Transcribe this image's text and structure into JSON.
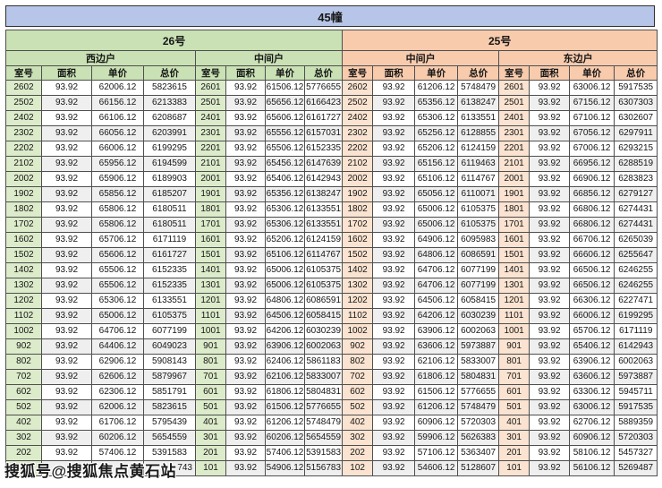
{
  "title": "45幢",
  "watermark": {
    "text": "搜狐号@搜狐焦点黄石站"
  },
  "colors": {
    "title_band": "#b7c6e8",
    "block_26_header": "#c9e1b4",
    "block_25_header": "#f8cbad",
    "room_cell_26": "#dcebca",
    "room_cell_25": "#fae3d0",
    "row_stripe": "#efefef",
    "grid_border": "#4f4f4f"
  },
  "chart_data": {
    "type": "table",
    "title": "45幢",
    "building_groups": [
      {
        "label": "26号",
        "unit_groups": [
          "西边户",
          "中间户"
        ]
      },
      {
        "label": "25号",
        "unit_groups": [
          "中间户",
          "东边户"
        ]
      }
    ],
    "column_headers": [
      "室号",
      "面积",
      "单价",
      "总价"
    ],
    "rows": [
      [
        "2602",
        "93.92",
        "62006.12",
        "5823615",
        "2601",
        "93.92",
        "61506.12",
        "5776655",
        "2602",
        "93.92",
        "61206.12",
        "5748479",
        "2601",
        "93.92",
        "63006.12",
        "5917535"
      ],
      [
        "2502",
        "93.92",
        "66156.12",
        "6213383",
        "2501",
        "93.92",
        "65656.12",
        "6166423",
        "2502",
        "93.92",
        "65356.12",
        "6138247",
        "2501",
        "93.92",
        "67156.12",
        "6307303"
      ],
      [
        "2402",
        "93.92",
        "66106.12",
        "6208687",
        "2401",
        "93.92",
        "65606.12",
        "6161727",
        "2402",
        "93.92",
        "65306.12",
        "6133551",
        "2401",
        "93.92",
        "67106.12",
        "6302607"
      ],
      [
        "2302",
        "93.92",
        "66056.12",
        "6203991",
        "2301",
        "93.92",
        "65556.12",
        "6157031",
        "2302",
        "93.92",
        "65256.12",
        "6128855",
        "2301",
        "93.92",
        "67056.12",
        "6297911"
      ],
      [
        "2202",
        "93.92",
        "66006.12",
        "6199295",
        "2201",
        "93.92",
        "65506.12",
        "6152335",
        "2202",
        "93.92",
        "65206.12",
        "6124159",
        "2201",
        "93.92",
        "67006.12",
        "6293215"
      ],
      [
        "2102",
        "93.92",
        "65956.12",
        "6194599",
        "2101",
        "93.92",
        "65456.12",
        "6147639",
        "2102",
        "93.92",
        "65156.12",
        "6119463",
        "2101",
        "93.92",
        "66956.12",
        "6288519"
      ],
      [
        "2002",
        "93.92",
        "65906.12",
        "6189903",
        "2001",
        "93.92",
        "65406.12",
        "6142943",
        "2002",
        "93.92",
        "65106.12",
        "6114767",
        "2001",
        "93.92",
        "66906.12",
        "6283823"
      ],
      [
        "1902",
        "93.92",
        "65856.12",
        "6185207",
        "1901",
        "93.92",
        "65356.12",
        "6138247",
        "1902",
        "93.92",
        "65056.12",
        "6110071",
        "1901",
        "93.92",
        "66856.12",
        "6279127"
      ],
      [
        "1802",
        "93.92",
        "65806.12",
        "6180511",
        "1801",
        "93.92",
        "65306.12",
        "6133551",
        "1802",
        "93.92",
        "65006.12",
        "6105375",
        "1801",
        "93.92",
        "66806.12",
        "6274431"
      ],
      [
        "1702",
        "93.92",
        "65806.12",
        "6180511",
        "1701",
        "93.92",
        "65306.12",
        "6133551",
        "1702",
        "93.92",
        "65006.12",
        "6105375",
        "1701",
        "93.92",
        "66806.12",
        "6274431"
      ],
      [
        "1602",
        "93.92",
        "65706.12",
        "6171119",
        "1601",
        "93.92",
        "65206.12",
        "6124159",
        "1602",
        "93.92",
        "64906.12",
        "6095983",
        "1601",
        "93.92",
        "66706.12",
        "6265039"
      ],
      [
        "1502",
        "93.92",
        "65606.12",
        "6161727",
        "1501",
        "93.92",
        "65106.12",
        "6114767",
        "1502",
        "93.92",
        "64806.12",
        "6086591",
        "1501",
        "93.92",
        "66606.12",
        "6255647"
      ],
      [
        "1402",
        "93.92",
        "65506.12",
        "6152335",
        "1401",
        "93.92",
        "65006.12",
        "6105375",
        "1402",
        "93.92",
        "64706.12",
        "6077199",
        "1401",
        "93.92",
        "66506.12",
        "6246255"
      ],
      [
        "1302",
        "93.92",
        "65506.12",
        "6152335",
        "1301",
        "93.92",
        "65006.12",
        "6105375",
        "1302",
        "93.92",
        "64706.12",
        "6077199",
        "1301",
        "93.92",
        "66506.12",
        "6246255"
      ],
      [
        "1202",
        "93.92",
        "65306.12",
        "6133551",
        "1201",
        "93.92",
        "64806.12",
        "6086591",
        "1202",
        "93.92",
        "64506.12",
        "6058415",
        "1201",
        "93.92",
        "66306.12",
        "6227471"
      ],
      [
        "1102",
        "93.92",
        "65006.12",
        "6105375",
        "1101",
        "93.92",
        "64506.12",
        "6058415",
        "1102",
        "93.92",
        "64206.12",
        "6030239",
        "1101",
        "93.92",
        "66006.12",
        "6199295"
      ],
      [
        "1002",
        "93.92",
        "64706.12",
        "6077199",
        "1001",
        "93.92",
        "64206.12",
        "6030239",
        "1002",
        "93.92",
        "63906.12",
        "6002063",
        "1001",
        "93.92",
        "65706.12",
        "6171119"
      ],
      [
        "902",
        "93.92",
        "64406.12",
        "6049023",
        "901",
        "93.92",
        "63906.12",
        "6002063",
        "902",
        "93.92",
        "63606.12",
        "5973887",
        "901",
        "93.92",
        "65406.12",
        "6142943"
      ],
      [
        "802",
        "93.92",
        "62906.12",
        "5908143",
        "801",
        "93.92",
        "62406.12",
        "5861183",
        "802",
        "93.92",
        "62106.12",
        "5833007",
        "801",
        "93.92",
        "63906.12",
        "6002063"
      ],
      [
        "702",
        "93.92",
        "62606.12",
        "5879967",
        "701",
        "93.92",
        "62106.12",
        "5833007",
        "702",
        "93.92",
        "61806.12",
        "5804831",
        "701",
        "93.92",
        "63606.12",
        "5973887"
      ],
      [
        "602",
        "93.92",
        "62306.12",
        "5851791",
        "601",
        "93.92",
        "61806.12",
        "5804831",
        "602",
        "93.92",
        "61506.12",
        "5776655",
        "601",
        "93.92",
        "63306.12",
        "5945711"
      ],
      [
        "502",
        "93.92",
        "62006.12",
        "5823615",
        "501",
        "93.92",
        "61506.12",
        "5776655",
        "502",
        "93.92",
        "61206.12",
        "5748479",
        "501",
        "93.92",
        "63006.12",
        "5917535"
      ],
      [
        "402",
        "93.92",
        "61706.12",
        "5795439",
        "401",
        "93.92",
        "61206.12",
        "5748479",
        "402",
        "93.92",
        "60906.12",
        "5720303",
        "401",
        "93.92",
        "62706.12",
        "5889359"
      ],
      [
        "302",
        "93.92",
        "60206.12",
        "5654559",
        "301",
        "93.92",
        "60206.12",
        "5654559",
        "302",
        "93.92",
        "59906.12",
        "5626383",
        "301",
        "93.92",
        "60906.12",
        "5720303"
      ],
      [
        "202",
        "93.92",
        "57406.12",
        "5391583",
        "201",
        "93.92",
        "57406.12",
        "5391583",
        "202",
        "93.92",
        "57106.12",
        "5363407",
        "201",
        "93.92",
        "58106.12",
        "5457327"
      ],
      [
        "",
        "",
        "",
        "743",
        "101",
        "93.92",
        "54906.12",
        "5156783",
        "102",
        "93.92",
        "54606.12",
        "5128607",
        "101",
        "93.92",
        "56106.12",
        "5269487"
      ]
    ]
  }
}
